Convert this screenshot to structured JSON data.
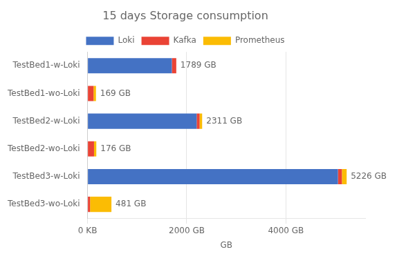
{
  "chart_data": {
    "type": "bar",
    "orientation": "horizontal",
    "stacked": true,
    "title": "15 days Storage consumption",
    "xlabel": "GB",
    "categories": [
      "TestBed1-w-Loki",
      "TestBed1-wo-Loki",
      "TestBed2-w-Loki",
      "TestBed2-wo-Loki",
      "TestBed3-w-Loki",
      "TestBed3-wo-Loki"
    ],
    "series": [
      {
        "name": "Loki",
        "color": "#4472C4",
        "values": [
          1700,
          0,
          2200,
          0,
          5050,
          0
        ]
      },
      {
        "name": "Kafka",
        "color": "#EA4335",
        "values": [
          89,
          120,
          60,
          130,
          80,
          50
        ]
      },
      {
        "name": "Prometheus",
        "color": "#FBBC04",
        "values": [
          0,
          49,
          51,
          46,
          96,
          431
        ]
      }
    ],
    "totals": [
      1789,
      169,
      2311,
      176,
      5226,
      481
    ],
    "total_labels": [
      "1789 GB",
      "169 GB",
      "2311 GB",
      "176 GB",
      "5226 GB",
      "481 GB"
    ],
    "xlim": [
      0,
      5600
    ],
    "xticks": [
      {
        "value": 0,
        "label": "0 KB"
      },
      {
        "value": 2000,
        "label": "2000 GB"
      },
      {
        "value": 4000,
        "label": "4000 GB"
      }
    ],
    "grid": true,
    "legend": "top"
  }
}
